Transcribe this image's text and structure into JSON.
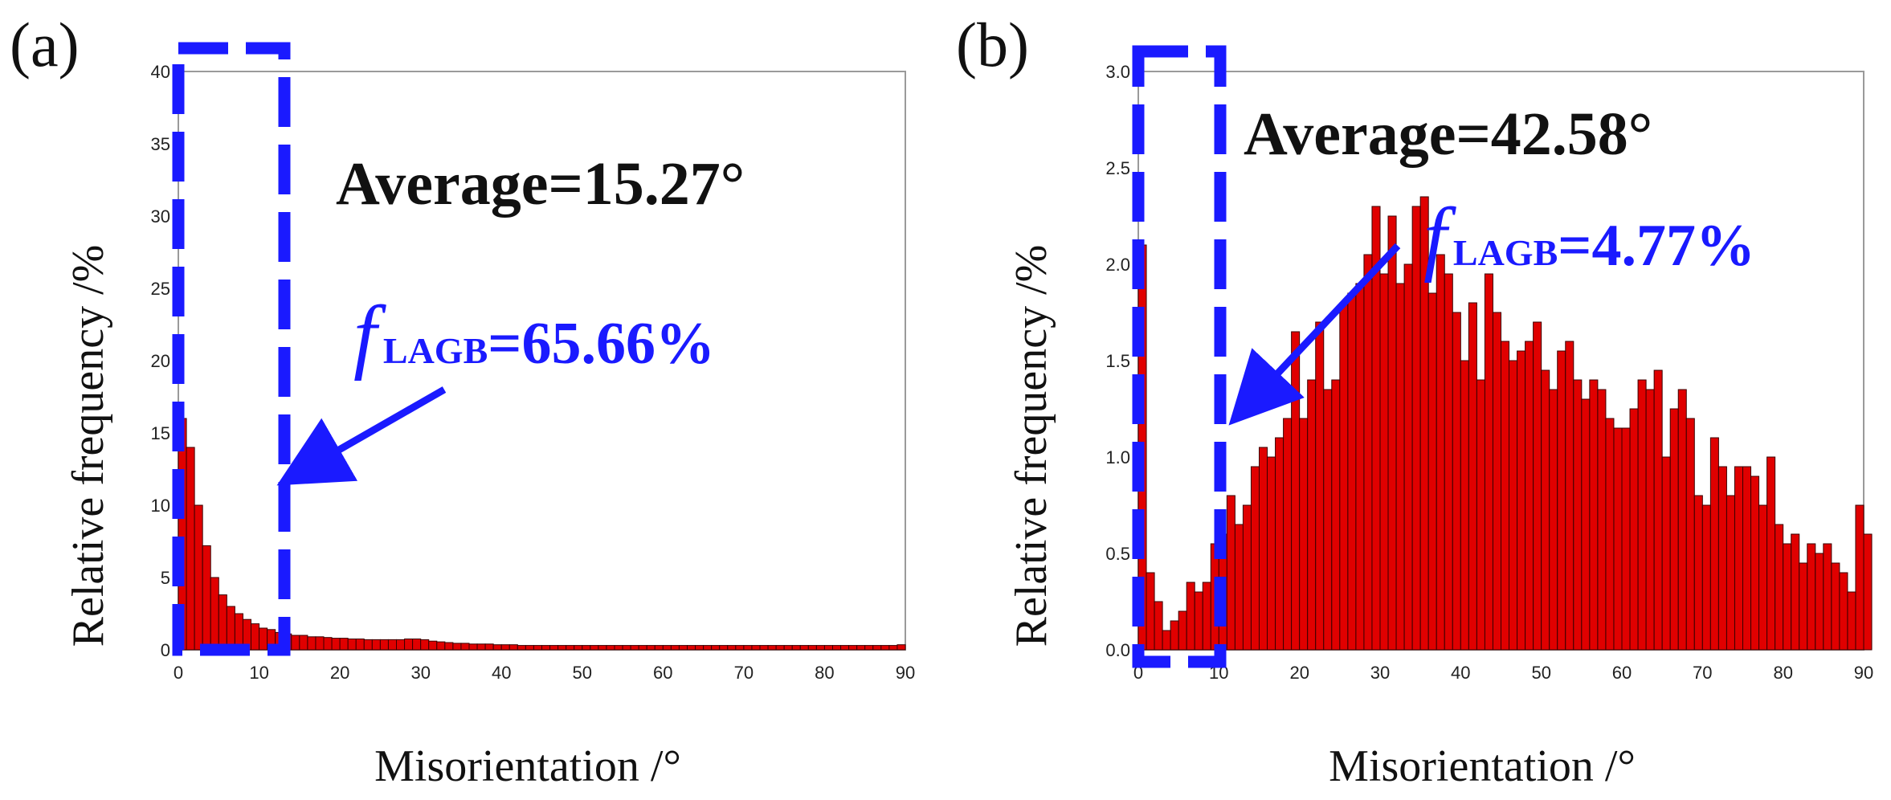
{
  "colors": {
    "bar": "#e00000",
    "annotation": "#1a1aff",
    "text": "#111111"
  },
  "chart_data": [
    {
      "type": "bar",
      "panel_label": "(a)",
      "xlabel": "Misorientation  /°",
      "ylabel": "Relative  frequency /%",
      "xlim": [
        0,
        90
      ],
      "ylim": [
        0,
        40
      ],
      "xticks": [
        "0",
        "10",
        "20",
        "30",
        "40",
        "50",
        "60",
        "70",
        "80",
        "90"
      ],
      "yticks": [
        "0",
        "5",
        "10",
        "15",
        "20",
        "25",
        "30",
        "35",
        "40"
      ],
      "bin_width": 1,
      "values": [
        16.0,
        14.0,
        10.0,
        7.2,
        5.0,
        3.8,
        3.0,
        2.5,
        2.1,
        1.8,
        1.5,
        1.4,
        1.2,
        1.1,
        1.0,
        1.0,
        0.9,
        0.9,
        0.85,
        0.8,
        0.8,
        0.75,
        0.75,
        0.7,
        0.7,
        0.7,
        0.7,
        0.7,
        0.75,
        0.75,
        0.7,
        0.6,
        0.55,
        0.5,
        0.45,
        0.45,
        0.4,
        0.4,
        0.4,
        0.35,
        0.35,
        0.35,
        0.3,
        0.3,
        0.3,
        0.3,
        0.3,
        0.3,
        0.3,
        0.3,
        0.3,
        0.3,
        0.3,
        0.3,
        0.3,
        0.3,
        0.3,
        0.3,
        0.3,
        0.3,
        0.3,
        0.3,
        0.3,
        0.3,
        0.3,
        0.3,
        0.3,
        0.3,
        0.3,
        0.3,
        0.3,
        0.3,
        0.3,
        0.3,
        0.3,
        0.3,
        0.3,
        0.3,
        0.3,
        0.3,
        0.3,
        0.3,
        0.3,
        0.3,
        0.3,
        0.3,
        0.3,
        0.3,
        0.3,
        0.35
      ],
      "highlight_range": [
        0,
        13
      ],
      "annotation_average": "Average=15.27°",
      "annotation_f_symbol": "f",
      "annotation_f_subscript": "LAGB",
      "annotation_f_value": "=65.66%"
    },
    {
      "type": "bar",
      "panel_label": "(b)",
      "xlabel": "Misorientation  /°",
      "ylabel": "Relative  frequency /%",
      "xlim": [
        0,
        90
      ],
      "ylim": [
        0,
        3.0
      ],
      "xticks": [
        "0",
        "10",
        "20",
        "30",
        "40",
        "50",
        "60",
        "70",
        "80",
        "90"
      ],
      "yticks": [
        "0.0",
        "0.5",
        "1.0",
        "1.5",
        "2.0",
        "2.5",
        "3.0"
      ],
      "bin_width": 1,
      "values": [
        2.1,
        0.4,
        0.25,
        0.1,
        0.15,
        0.2,
        0.35,
        0.3,
        0.35,
        0.55,
        0.6,
        0.8,
        0.65,
        0.75,
        0.95,
        1.05,
        1.0,
        1.1,
        1.2,
        1.65,
        1.2,
        1.4,
        1.7,
        1.35,
        1.4,
        1.8,
        1.85,
        1.9,
        2.05,
        2.3,
        1.95,
        2.25,
        1.9,
        2.0,
        2.3,
        2.35,
        1.85,
        2.05,
        1.95,
        1.75,
        1.5,
        1.8,
        1.4,
        1.95,
        1.75,
        1.6,
        1.5,
        1.55,
        1.6,
        1.7,
        1.45,
        1.35,
        1.55,
        1.6,
        1.4,
        1.3,
        1.4,
        1.35,
        1.2,
        1.15,
        1.15,
        1.25,
        1.4,
        1.35,
        1.45,
        1.0,
        1.25,
        1.35,
        1.2,
        0.8,
        0.75,
        1.1,
        0.95,
        0.8,
        0.95,
        0.95,
        0.9,
        0.75,
        1.0,
        0.65,
        0.55,
        0.6,
        0.45,
        0.55,
        0.5,
        0.55,
        0.45,
        0.4,
        0.3,
        0.75,
        0.6
      ],
      "highlight_range": [
        0,
        10
      ],
      "annotation_average": "Average=42.58°",
      "annotation_f_symbol": "f",
      "annotation_f_subscript": "LAGB",
      "annotation_f_value": "=4.77%"
    }
  ]
}
